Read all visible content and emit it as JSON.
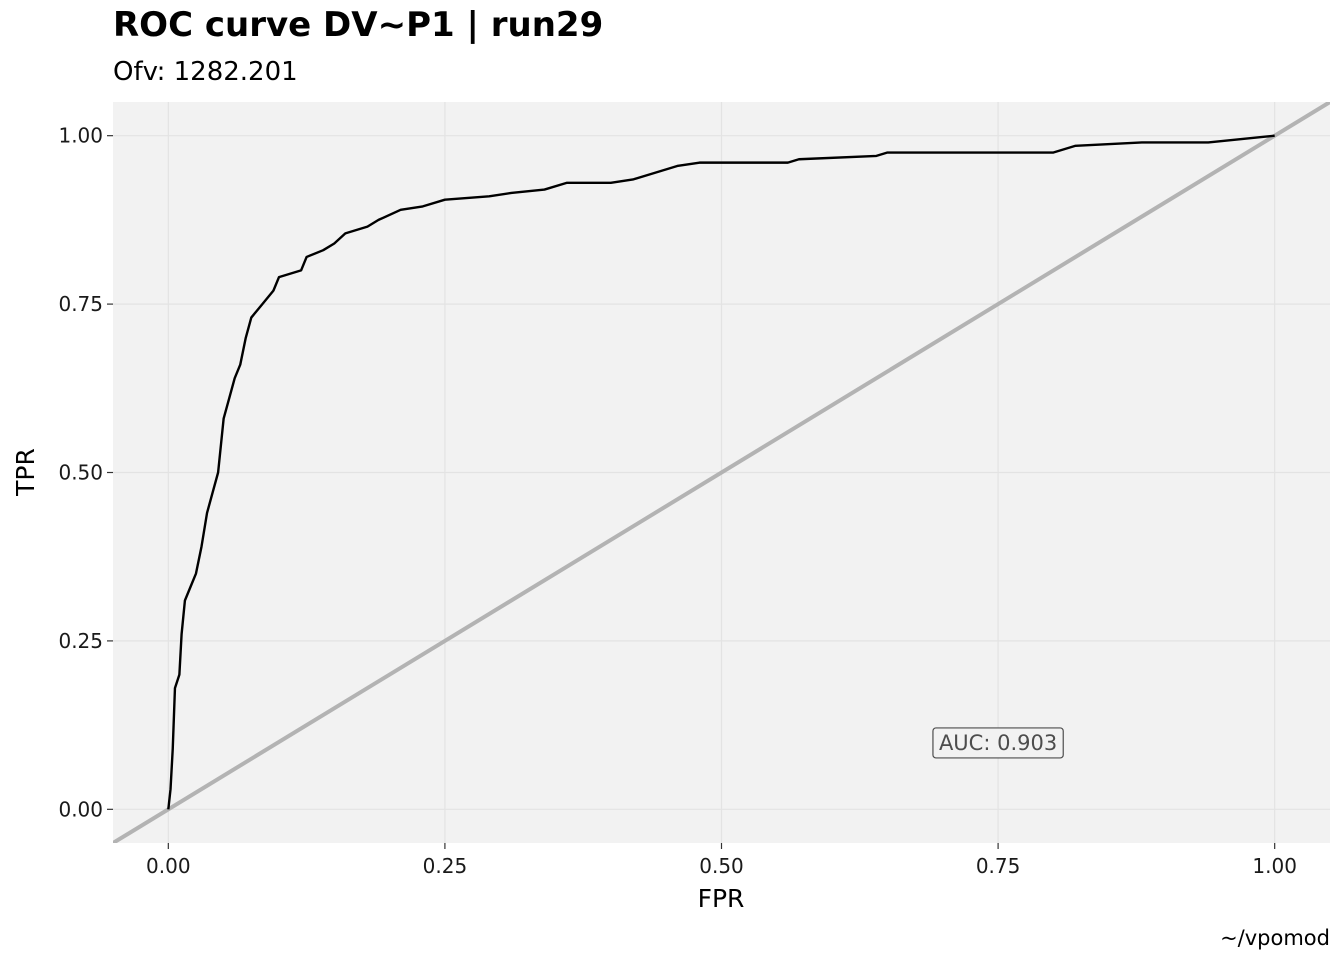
{
  "chart_data": {
    "type": "line",
    "title": "ROC curve DV~P1 | run29",
    "subtitle": "Ofv: 1282.201",
    "xlabel": "FPR",
    "ylabel": "TPR",
    "caption": "~/vpomod",
    "annotation": {
      "text": "AUC: 0.903",
      "x": 0.75,
      "y": 0.1
    },
    "color": "#000000",
    "abline": {
      "intercept": 0,
      "slope": 1,
      "color": "#b3b3b3"
    },
    "x": [
      0,
      0.002,
      0.004,
      0.006,
      0.01,
      0.012,
      0.015,
      0.02,
      0.025,
      0.03,
      0.035,
      0.04,
      0.045,
      0.05,
      0.055,
      0.06,
      0.065,
      0.07,
      0.075,
      0.085,
      0.095,
      0.1,
      0.12,
      0.125,
      0.14,
      0.15,
      0.16,
      0.18,
      0.19,
      0.21,
      0.23,
      0.25,
      0.29,
      0.31,
      0.34,
      0.36,
      0.4,
      0.42,
      0.44,
      0.46,
      0.48,
      0.56,
      0.57,
      0.64,
      0.65,
      0.8,
      0.81,
      0.82,
      0.88,
      0.94,
      0.97,
      1
    ],
    "values": [
      0,
      0.03,
      0.09,
      0.18,
      0.2,
      0.26,
      0.31,
      0.33,
      0.35,
      0.39,
      0.44,
      0.47,
      0.5,
      0.58,
      0.61,
      0.64,
      0.66,
      0.7,
      0.73,
      0.75,
      0.77,
      0.79,
      0.8,
      0.82,
      0.83,
      0.84,
      0.855,
      0.865,
      0.875,
      0.89,
      0.895,
      0.905,
      0.91,
      0.915,
      0.92,
      0.93,
      0.93,
      0.935,
      0.945,
      0.955,
      0.96,
      0.96,
      0.965,
      0.97,
      0.975,
      0.975,
      0.98,
      0.985,
      0.99,
      0.99,
      0.995,
      1
    ],
    "xlim": [
      -0.05,
      1.05
    ],
    "ylim": [
      -0.05,
      1.05
    ],
    "xticks": [
      {
        "value": 0,
        "label": "0.00"
      },
      {
        "value": 0.25,
        "label": "0.25"
      },
      {
        "value": 0.5,
        "label": "0.50"
      },
      {
        "value": 0.75,
        "label": "0.75"
      },
      {
        "value": 1,
        "label": "1.00"
      }
    ],
    "yticks": [
      {
        "value": 0,
        "label": "0.00"
      },
      {
        "value": 0.25,
        "label": "0.25"
      },
      {
        "value": 0.5,
        "label": "0.50"
      },
      {
        "value": 0.75,
        "label": "0.75"
      },
      {
        "value": 1,
        "label": "1.00"
      }
    ],
    "grid": true
  }
}
